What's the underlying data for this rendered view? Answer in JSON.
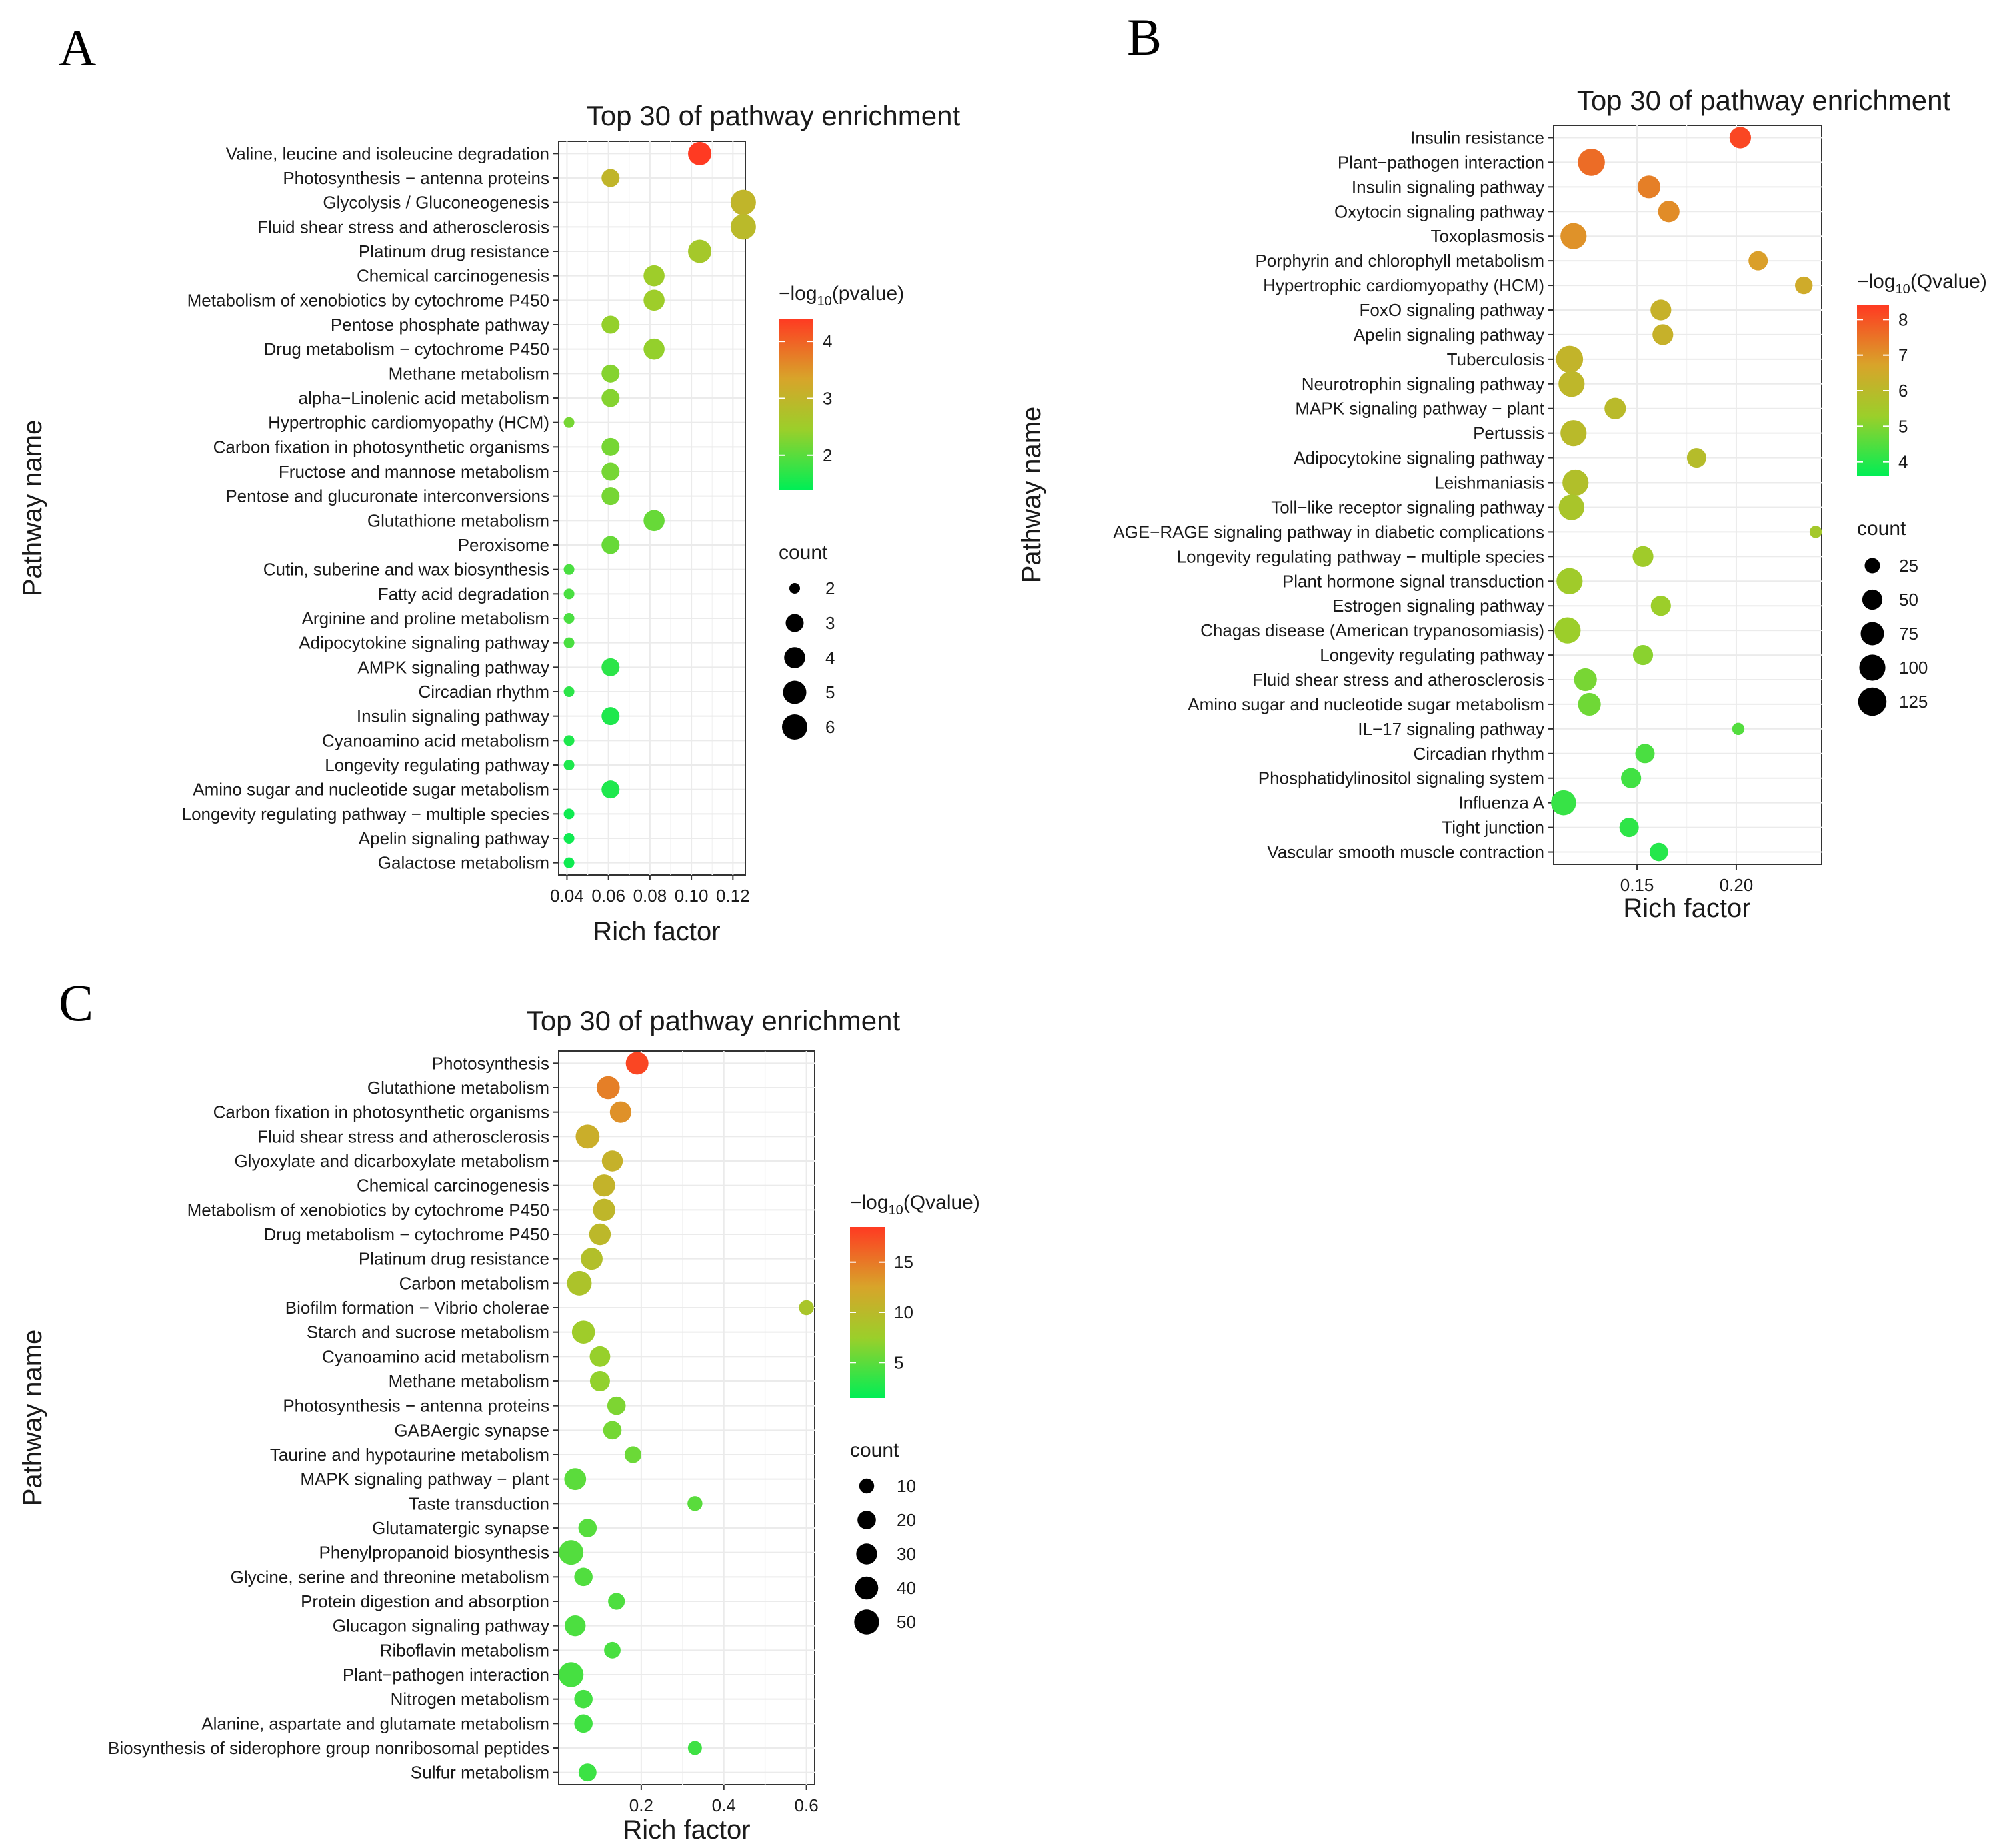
{
  "panels": {
    "a": {
      "letter": "A"
    },
    "b": {
      "letter": "B"
    },
    "c": {
      "letter": "C"
    }
  },
  "chart_data": [
    {
      "id": "A",
      "type": "scatter",
      "title": "Top 30 of pathway enrichment",
      "xlabel": "Rich factor",
      "ylabel": "Pathway name",
      "xlim": [
        0.036,
        0.126
      ],
      "xticks": [
        0.04,
        0.06,
        0.08,
        0.1,
        0.12
      ],
      "xtick_labels": [
        "0.04",
        "0.06",
        "0.08",
        "0.10",
        "0.12"
      ],
      "color_legend": {
        "title_prefix": "−log",
        "title_sub": "10",
        "title_suffix": "(pvalue)",
        "min": 1.4,
        "max": 4.4,
        "ticks": [
          2,
          3,
          4
        ]
      },
      "size_legend": {
        "title": "count",
        "values": [
          2,
          3,
          4,
          5,
          6
        ],
        "min": 2,
        "max": 6
      },
      "grid": true,
      "categories": [
        "Valine, leucine and isoleucine degradation",
        "Photosynthesis − antenna proteins",
        "Glycolysis / Gluconeogenesis",
        "Fluid shear stress and atherosclerosis",
        "Platinum drug resistance",
        "Chemical carcinogenesis",
        "Metabolism of xenobiotics by cytochrome P450",
        "Pentose phosphate pathway",
        "Drug metabolism − cytochrome P450",
        "Methane metabolism",
        "alpha−Linolenic acid metabolism",
        "Hypertrophic cardiomyopathy (HCM)",
        "Carbon fixation in photosynthetic organisms",
        "Fructose and mannose metabolism",
        "Pentose and glucuronate interconversions",
        "Glutathione metabolism",
        "Peroxisome",
        "Cutin, suberine and wax biosynthesis",
        "Fatty acid degradation",
        "Arginine and proline metabolism",
        "Adipocytokine signaling pathway",
        "AMPK signaling pathway",
        "Circadian rhythm",
        "Insulin signaling pathway",
        "Cyanoamino acid metabolism",
        "Longevity regulating pathway",
        "Amino sugar and nucleotide sugar metabolism",
        "Longevity regulating pathway − multiple species",
        "Apelin signaling pathway",
        "Galactose metabolism"
      ],
      "x": [
        0.104,
        0.061,
        0.125,
        0.125,
        0.104,
        0.082,
        0.082,
        0.061,
        0.082,
        0.061,
        0.061,
        0.041,
        0.061,
        0.061,
        0.061,
        0.082,
        0.061,
        0.041,
        0.041,
        0.041,
        0.041,
        0.061,
        0.041,
        0.061,
        0.041,
        0.041,
        0.061,
        0.041,
        0.041,
        0.041
      ],
      "count": [
        5,
        3,
        6,
        6,
        5,
        4,
        4,
        3,
        4,
        3,
        3,
        2,
        3,
        3,
        3,
        4,
        3,
        2,
        2,
        2,
        2,
        3,
        2,
        3,
        2,
        2,
        3,
        2,
        2,
        2
      ],
      "color_value": [
        4.4,
        3.0,
        3.0,
        2.9,
        2.6,
        2.5,
        2.5,
        2.4,
        2.4,
        2.3,
        2.3,
        2.2,
        2.2,
        2.2,
        2.2,
        2.1,
        2.1,
        1.9,
        1.9,
        1.9,
        1.9,
        1.7,
        1.7,
        1.6,
        1.6,
        1.6,
        1.6,
        1.5,
        1.5,
        1.5
      ]
    },
    {
      "id": "B",
      "type": "scatter",
      "title": "Top 30 of pathway enrichment",
      "xlabel": "Rich factor",
      "ylabel": "Pathway name",
      "xlim": [
        0.108,
        0.243
      ],
      "xticks": [
        0.15,
        0.2
      ],
      "xtick_labels": [
        "0.15",
        "0.20"
      ],
      "color_legend": {
        "title_prefix": "−log",
        "title_sub": "10",
        "title_suffix": "(Qvalue)",
        "min": 3.6,
        "max": 8.4,
        "ticks": [
          4,
          5,
          6,
          7,
          8
        ]
      },
      "size_legend": {
        "title": "count",
        "values": [
          25,
          50,
          75,
          100,
          125
        ],
        "min": 10,
        "max": 135
      },
      "grid": true,
      "categories": [
        "Insulin resistance",
        "Plant−pathogen interaction",
        "Insulin signaling pathway",
        "Oxytocin signaling pathway",
        "Toxoplasmosis",
        "Porphyrin and chlorophyll metabolism",
        "Hypertrophic cardiomyopathy (HCM)",
        "FoxO signaling pathway",
        "Apelin signaling pathway",
        "Tuberculosis",
        "Neurotrophin signaling pathway",
        "MAPK signaling pathway − plant",
        "Pertussis",
        "Adipocytokine signaling pathway",
        "Leishmaniasis",
        "Toll−like receptor signaling pathway",
        "AGE−RAGE signaling pathway in diabetic complications",
        "Longevity regulating pathway − multiple species",
        "Plant hormone signal transduction",
        "Estrogen signaling pathway",
        "Chagas disease (American trypanosomiasis)",
        "Longevity regulating pathway",
        "Fluid shear stress and atherosclerosis",
        "Amino sugar and nucleotide sugar metabolism",
        "IL−17 signaling pathway",
        "Circadian rhythm",
        "Phosphatidylinositol signaling system",
        "Influenza A",
        "Tight junction",
        "Vascular smooth muscle contraction"
      ],
      "x": [
        0.202,
        0.127,
        0.156,
        0.166,
        0.118,
        0.211,
        0.234,
        0.162,
        0.163,
        0.116,
        0.117,
        0.139,
        0.118,
        0.18,
        0.119,
        0.117,
        0.24,
        0.153,
        0.116,
        0.162,
        0.115,
        0.153,
        0.124,
        0.126,
        0.201,
        0.154,
        0.147,
        0.113,
        0.146,
        0.161
      ],
      "count": [
        60,
        110,
        70,
        60,
        100,
        45,
        35,
        55,
        55,
        110,
        100,
        60,
        100,
        45,
        100,
        95,
        15,
        55,
        100,
        50,
        100,
        50,
        70,
        70,
        15,
        45,
        50,
        90,
        45,
        40
      ],
      "color_value": [
        8.2,
        7.6,
        7.3,
        7.1,
        7.0,
        6.8,
        6.5,
        6.3,
        6.3,
        6.2,
        6.1,
        6.0,
        6.0,
        5.9,
        5.8,
        5.6,
        5.5,
        5.4,
        5.4,
        5.3,
        5.3,
        5.1,
        4.9,
        4.8,
        4.5,
        4.4,
        4.3,
        4.2,
        4.1,
        4.0
      ]
    },
    {
      "id": "C",
      "type": "scatter",
      "title": "Top 30 of pathway enrichment",
      "xlabel": "Rich factor",
      "ylabel": "Pathway name",
      "xlim": [
        0.0,
        0.62
      ],
      "xticks": [
        0.2,
        0.4,
        0.6
      ],
      "xtick_labels": [
        "0.2",
        "0.4",
        "0.6"
      ],
      "color_legend": {
        "title_prefix": "−log",
        "title_sub": "10",
        "title_suffix": "(Qvalue)",
        "min": 1.5,
        "max": 18.5,
        "ticks": [
          5,
          10,
          15
        ]
      },
      "size_legend": {
        "title": "count",
        "values": [
          10,
          20,
          30,
          40,
          50
        ],
        "min": 2,
        "max": 60
      },
      "grid": true,
      "categories": [
        "Photosynthesis",
        "Glutathione metabolism",
        "Carbon fixation in photosynthetic organisms",
        "Fluid shear stress and atherosclerosis",
        "Glyoxylate and dicarboxylate metabolism",
        "Chemical carcinogenesis",
        "Metabolism of xenobiotics by cytochrome P450",
        "Drug metabolism − cytochrome P450",
        "Platinum drug resistance",
        "Carbon metabolism",
        "Biofilm formation − Vibrio cholerae",
        "Starch and sucrose metabolism",
        "Cyanoamino acid metabolism",
        "Methane metabolism",
        "Photosynthesis − antenna proteins",
        "GABAergic synapse",
        "Taurine and hypotaurine metabolism",
        "MAPK signaling pathway − plant",
        "Taste transduction",
        "Glutamatergic synapse",
        "Phenylpropanoid biosynthesis",
        "Glycine, serine and threonine metabolism",
        "Protein digestion and absorption",
        "Glucagon signaling pathway",
        "Riboflavin metabolism",
        "Plant−pathogen interaction",
        "Nitrogen metabolism",
        "Alanine, aspartate and glutamate metabolism",
        "Biosynthesis of siderophore group nonribosomal peptides",
        "Sulfur metabolism"
      ],
      "x": [
        0.19,
        0.12,
        0.15,
        0.07,
        0.13,
        0.11,
        0.11,
        0.1,
        0.08,
        0.05,
        0.6,
        0.06,
        0.1,
        0.1,
        0.14,
        0.13,
        0.18,
        0.04,
        0.33,
        0.07,
        0.03,
        0.06,
        0.14,
        0.04,
        0.13,
        0.03,
        0.06,
        0.06,
        0.33,
        0.07
      ],
      "count": [
        38,
        40,
        32,
        44,
        30,
        35,
        36,
        33,
        34,
        48,
        10,
        40,
        28,
        26,
        20,
        20,
        15,
        34,
        10,
        20,
        48,
        20,
        15,
        30,
        14,
        50,
        20,
        20,
        8,
        18
      ],
      "color_value": [
        17.8,
        14.6,
        13.6,
        11.4,
        11.0,
        10.8,
        10.4,
        10.2,
        9.4,
        8.9,
        8.6,
        7.8,
        7.3,
        7.1,
        6.3,
        6.0,
        5.6,
        5.0,
        4.9,
        4.8,
        4.7,
        4.6,
        4.5,
        4.4,
        4.3,
        4.2,
        4.1,
        4.0,
        3.9,
        3.8
      ]
    }
  ]
}
